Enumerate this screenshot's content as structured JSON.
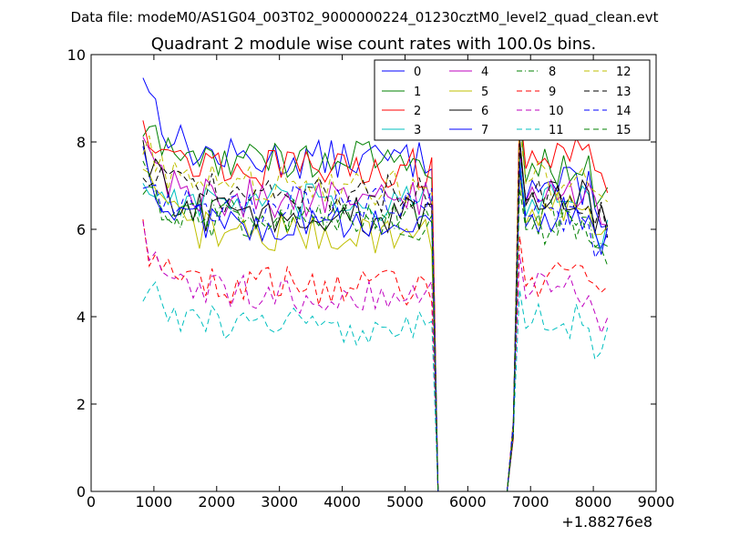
{
  "chart_data": {
    "type": "line",
    "suptitle": "Data file: modeM0/AS1G04_003T02_9000000224_01230cztM0_level2_quad_clean.evt",
    "title": "Quadrant 2 module wise count rates with 100.0s bins.",
    "xlabel": "",
    "ylabel": "",
    "x_offset_label": "+1.88276e8",
    "xlim": [
      0,
      9000
    ],
    "ylim": [
      0,
      10
    ],
    "xticks": [
      "0",
      "1000",
      "2000",
      "3000",
      "4000",
      "5000",
      "6000",
      "7000",
      "8000",
      "9000"
    ],
    "yticks": [
      "0",
      "2",
      "4",
      "6",
      "8",
      "10"
    ],
    "legend_position": "top-right",
    "legend_columns": 4,
    "segments": [
      {
        "x_start": 826,
        "x_end": 5426
      },
      {
        "x_start": 5526,
        "x_end": 6626
      },
      {
        "x_start": 6726,
        "x_end": 8226
      }
    ],
    "series": [
      {
        "name": "0",
        "color": "#0000ff",
        "dash": "solid",
        "base1": 7.6,
        "seg3": 7.0,
        "start": 9.7
      },
      {
        "name": "1",
        "color": "#008000",
        "dash": "solid",
        "base1": 7.6,
        "seg3": 7.4,
        "start": 8.3
      },
      {
        "name": "2",
        "color": "#ff0000",
        "dash": "solid",
        "base1": 7.4,
        "seg3": 7.7,
        "start": 8.6
      },
      {
        "name": "3",
        "color": "#00bfbf",
        "dash": "solid",
        "base1": 6.6,
        "seg3": 6.6,
        "start": 7.1
      },
      {
        "name": "4",
        "color": "#bf00bf",
        "dash": "solid",
        "base1": 6.7,
        "seg3": 6.9,
        "start": 8.1
      },
      {
        "name": "5",
        "color": "#bfbf00",
        "dash": "solid",
        "base1": 5.9,
        "seg3": 6.4,
        "start": 7.3
      },
      {
        "name": "6",
        "color": "#000000",
        "dash": "solid",
        "base1": 6.3,
        "seg3": 6.8,
        "start": 7.9
      },
      {
        "name": "7",
        "color": "#0000ff",
        "dash": "solid",
        "base1": 6.1,
        "seg3": 6.3,
        "start": 7.7
      },
      {
        "name": "8",
        "color": "#008000",
        "dash": "dashdot",
        "base1": 6.3,
        "seg3": 6.3,
        "start": 7.3
      },
      {
        "name": "9",
        "color": "#ff0000",
        "dash": "dashed",
        "base1": 4.7,
        "seg3": 4.9,
        "start": 5.9
      },
      {
        "name": "10",
        "color": "#bf00bf",
        "dash": "dashed",
        "base1": 4.5,
        "seg3": 4.6,
        "start": 5.8
      },
      {
        "name": "11",
        "color": "#00bfbf",
        "dash": "dashed",
        "base1": 3.8,
        "seg3": 3.9,
        "start": 4.8
      },
      {
        "name": "12",
        "color": "#bfbf00",
        "dash": "dashed",
        "base1": 7.0,
        "seg3": 7.2,
        "start": 8.1
      },
      {
        "name": "13",
        "color": "#000000",
        "dash": "dashed",
        "base1": 6.8,
        "seg3": 6.8,
        "start": 7.5
      },
      {
        "name": "14",
        "color": "#0000ff",
        "dash": "dashed",
        "base1": 6.6,
        "seg3": 6.4,
        "start": 7.2
      },
      {
        "name": "15",
        "color": "#008000",
        "dash": "dashed",
        "base1": 6.2,
        "seg3": 6.1,
        "start": 7.0
      }
    ]
  }
}
